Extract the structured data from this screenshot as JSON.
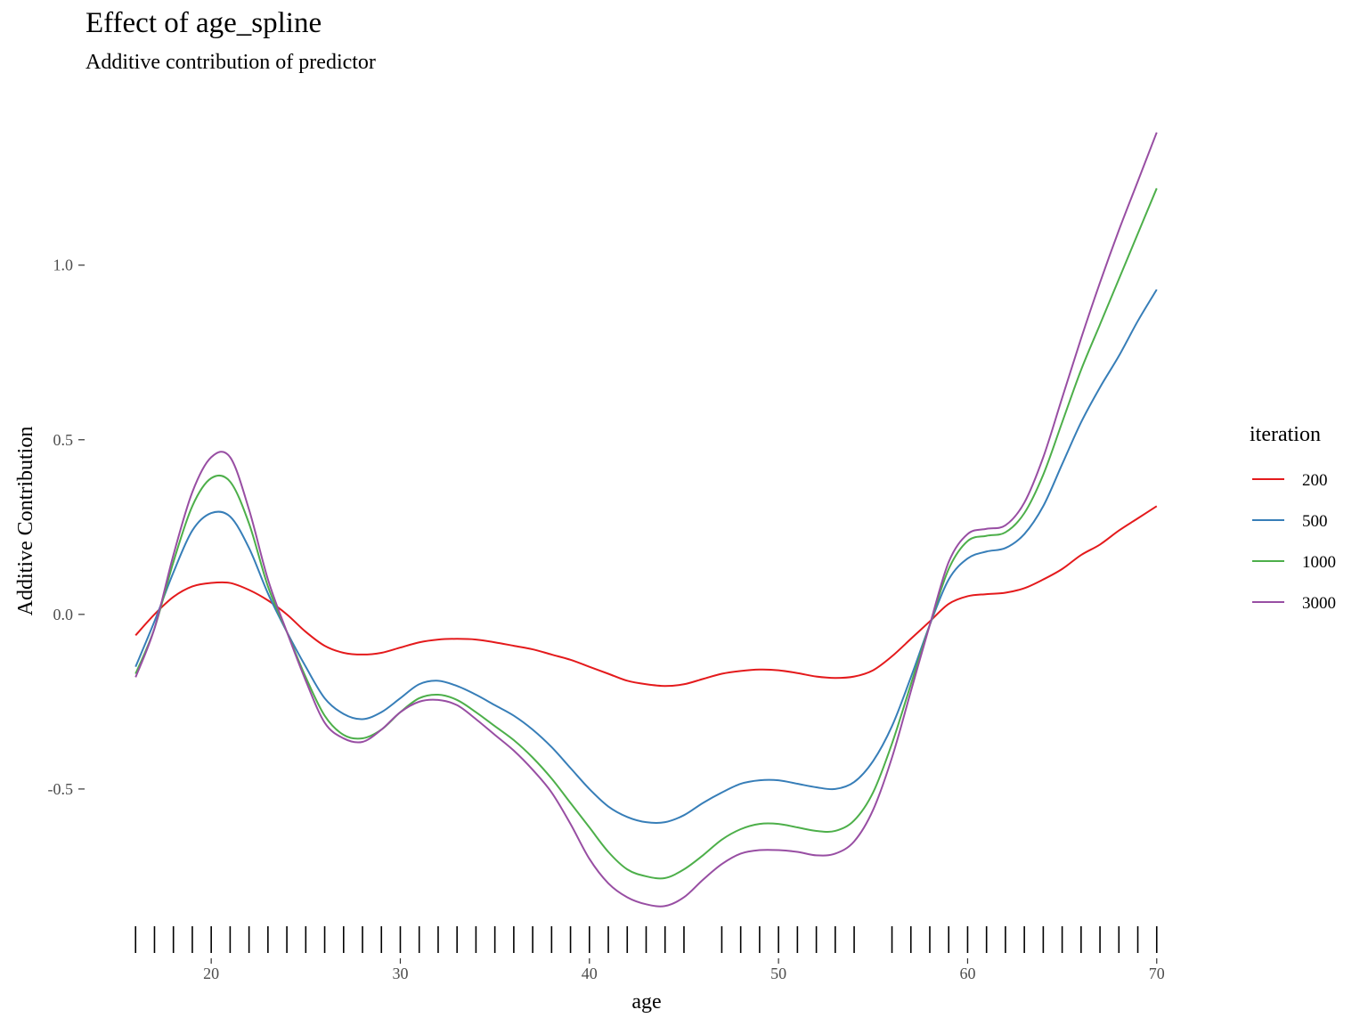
{
  "chart_data": {
    "type": "line",
    "title": "Effect of age_spline",
    "subtitle": "Additive contribution of predictor",
    "xlabel": "age",
    "ylabel": "Additive Contribution",
    "xlim": [
      15,
      71
    ],
    "ylim": [
      -0.87,
      1.42
    ],
    "x_ticks": [
      20,
      30,
      40,
      50,
      60,
      70
    ],
    "x_tick_labels": [
      "20",
      "30",
      "40",
      "50",
      "60",
      "70"
    ],
    "y_ticks": [
      -0.5,
      0.0,
      0.5,
      1.0
    ],
    "y_tick_labels": [
      "-0.5",
      "0.0",
      "0.5",
      "1.0"
    ],
    "grid": false,
    "legend": {
      "title": "iteration",
      "position": "right"
    },
    "x": [
      16,
      17,
      18,
      19,
      20,
      21,
      22,
      23,
      24,
      25,
      26,
      27,
      28,
      29,
      30,
      31,
      32,
      33,
      34,
      35,
      36,
      37,
      38,
      39,
      40,
      41,
      42,
      43,
      44,
      45,
      46,
      47,
      48,
      49,
      50,
      51,
      52,
      53,
      54,
      55,
      56,
      57,
      58,
      59,
      60,
      61,
      62,
      63,
      64,
      65,
      66,
      67,
      68,
      69,
      70
    ],
    "series": [
      {
        "name": "200",
        "color": "#E41A1C",
        "values": [
          -0.06,
          0.0,
          0.05,
          0.08,
          0.09,
          0.09,
          0.07,
          0.04,
          0.0,
          -0.05,
          -0.09,
          -0.11,
          -0.115,
          -0.11,
          -0.095,
          -0.08,
          -0.072,
          -0.07,
          -0.072,
          -0.08,
          -0.09,
          -0.1,
          -0.115,
          -0.13,
          -0.15,
          -0.17,
          -0.19,
          -0.2,
          -0.205,
          -0.2,
          -0.185,
          -0.17,
          -0.162,
          -0.158,
          -0.16,
          -0.168,
          -0.178,
          -0.182,
          -0.178,
          -0.16,
          -0.12,
          -0.07,
          -0.02,
          0.03,
          0.052,
          0.058,
          0.062,
          0.075,
          0.1,
          0.13,
          0.17,
          0.2,
          0.24,
          0.275,
          0.31
        ]
      },
      {
        "name": "500",
        "color": "#377EB8",
        "values": [
          -0.15,
          -0.02,
          0.12,
          0.24,
          0.29,
          0.28,
          0.19,
          0.06,
          -0.05,
          -0.15,
          -0.24,
          -0.285,
          -0.3,
          -0.28,
          -0.24,
          -0.2,
          -0.19,
          -0.205,
          -0.23,
          -0.26,
          -0.29,
          -0.33,
          -0.38,
          -0.44,
          -0.5,
          -0.55,
          -0.58,
          -0.595,
          -0.595,
          -0.575,
          -0.54,
          -0.51,
          -0.485,
          -0.475,
          -0.475,
          -0.485,
          -0.495,
          -0.5,
          -0.48,
          -0.42,
          -0.32,
          -0.18,
          -0.03,
          0.1,
          0.16,
          0.18,
          0.19,
          0.23,
          0.31,
          0.43,
          0.55,
          0.65,
          0.74,
          0.84,
          0.93
        ]
      },
      {
        "name": "1000",
        "color": "#4DAF4A",
        "values": [
          -0.17,
          -0.04,
          0.15,
          0.31,
          0.39,
          0.38,
          0.26,
          0.08,
          -0.05,
          -0.18,
          -0.29,
          -0.345,
          -0.355,
          -0.33,
          -0.28,
          -0.24,
          -0.23,
          -0.245,
          -0.28,
          -0.32,
          -0.36,
          -0.41,
          -0.47,
          -0.54,
          -0.61,
          -0.68,
          -0.73,
          -0.75,
          -0.755,
          -0.73,
          -0.69,
          -0.645,
          -0.615,
          -0.6,
          -0.6,
          -0.61,
          -0.62,
          -0.62,
          -0.59,
          -0.51,
          -0.37,
          -0.2,
          -0.03,
          0.13,
          0.21,
          0.225,
          0.235,
          0.29,
          0.4,
          0.55,
          0.7,
          0.83,
          0.96,
          1.09,
          1.22
        ]
      },
      {
        "name": "3000",
        "color": "#984EA3",
        "values": [
          -0.18,
          -0.04,
          0.17,
          0.35,
          0.45,
          0.45,
          0.3,
          0.1,
          -0.05,
          -0.19,
          -0.31,
          -0.355,
          -0.365,
          -0.33,
          -0.28,
          -0.25,
          -0.245,
          -0.26,
          -0.3,
          -0.345,
          -0.39,
          -0.445,
          -0.51,
          -0.6,
          -0.7,
          -0.77,
          -0.81,
          -0.83,
          -0.835,
          -0.81,
          -0.76,
          -0.715,
          -0.685,
          -0.675,
          -0.675,
          -0.68,
          -0.69,
          -0.685,
          -0.65,
          -0.56,
          -0.41,
          -0.22,
          -0.03,
          0.15,
          0.23,
          0.245,
          0.255,
          0.32,
          0.45,
          0.62,
          0.79,
          0.95,
          1.1,
          1.24,
          1.38
        ]
      }
    ],
    "rug_x": [
      16,
      17,
      18,
      19,
      20,
      21,
      22,
      23,
      24,
      25,
      26,
      27,
      28,
      29,
      30,
      31,
      32,
      33,
      34,
      35,
      36,
      37,
      38,
      39,
      40,
      41,
      42,
      43,
      44,
      45,
      47,
      48,
      49,
      50,
      51,
      52,
      53,
      54,
      56,
      57,
      58,
      59,
      60,
      61,
      62,
      63,
      64,
      65,
      66,
      67,
      68,
      69,
      70
    ]
  }
}
